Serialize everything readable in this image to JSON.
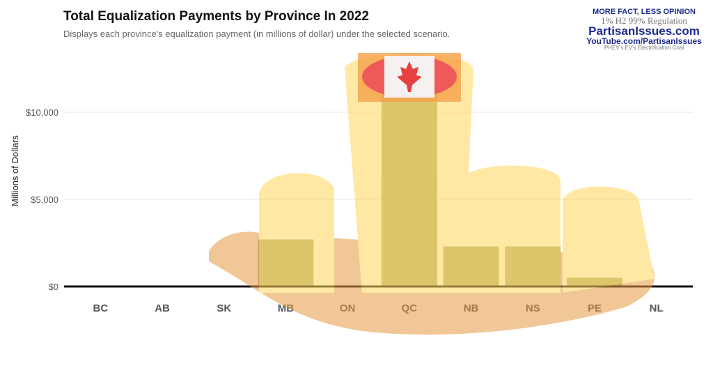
{
  "chart_data": {
    "type": "bar",
    "title": "Total Equalization Payments by Province In 2022",
    "subtitle": "Displays each province's equalization payment (in millions of dollar) under the selected scenario.",
    "xlabel": "",
    "ylabel": "Millions of Dollars",
    "categories": [
      "BC",
      "AB",
      "SK",
      "MB",
      "ON",
      "QC",
      "NB",
      "NS",
      "PE",
      "NL"
    ],
    "values": [
      0,
      0,
      0,
      2700,
      0,
      13100,
      2300,
      2300,
      500,
      0
    ],
    "ylim": [
      0,
      13500
    ],
    "yticks": [
      0,
      5000,
      10000
    ],
    "ytick_labels": [
      "$0",
      "$5,000",
      "$10,000"
    ],
    "grid": true,
    "bar_color": "#b3b07f"
  },
  "logo": {
    "tagline": "MORE FACT, LESS OPINION",
    "words": "1% H2 99% Regulation",
    "site": "PartisanIssues.com",
    "youtube": "YouTube.com/PartisanIssues",
    "footer": "PHEV's EV's Electrification Coal"
  }
}
